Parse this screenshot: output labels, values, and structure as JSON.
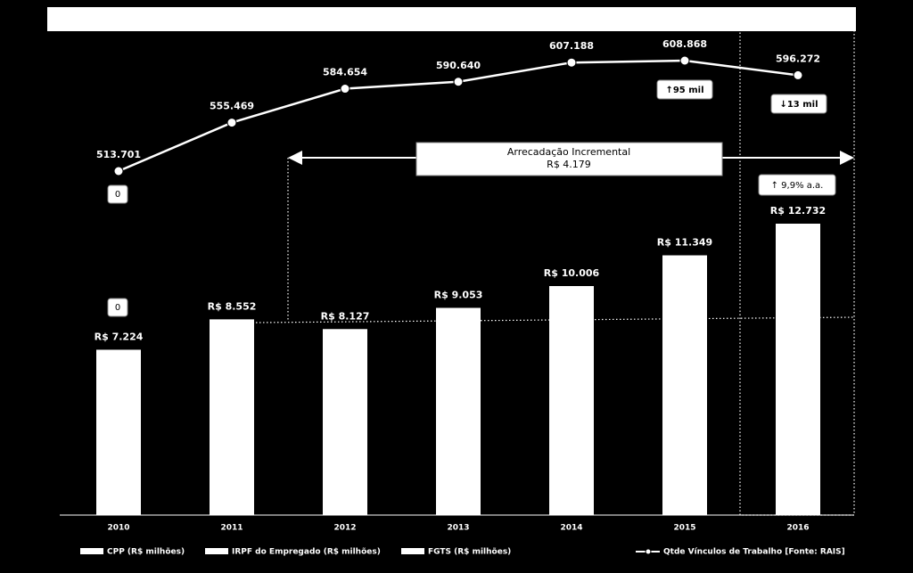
{
  "chart_data": {
    "type": "bar",
    "categories": [
      "2010",
      "2011",
      "2012",
      "2013",
      "2014",
      "2015",
      "2016"
    ],
    "values": [
      7224,
      8552,
      8127,
      9053,
      10006,
      11349,
      12732
    ],
    "value_labels": [
      "R$ 7.224",
      "R$ 8.552",
      "R$ 8.127",
      "R$ 9.053",
      "R$ 10.006",
      "R$ 11.349",
      "R$ 12.732"
    ],
    "color": "#ffffff",
    "legend": [
      "CPP (R$ milhões)",
      "IRPF do Empregado (R$ milhões)",
      "FGTS (R$ milhões)"
    ],
    "line": {
      "name": "Qtde Vínculos de Trabalho [Fonte: RAIS]",
      "color": "#ffffff",
      "values": [
        513701,
        555469,
        584654,
        590640,
        607188,
        608868,
        596272
      ],
      "value_labels": [
        "513.701",
        "555.469",
        "584.654",
        "590.640",
        "607.188",
        "608.868",
        "596.272"
      ]
    },
    "annotations": {
      "zero_top": "0",
      "zero_bottom": "0",
      "change_2015": "↑95 mil",
      "change_2016": "↓13 mil",
      "growth": "↑ 9,9% a.a.",
      "incremental_title": "Arrecadação Incremental",
      "incremental_value": "R$ 4.179"
    }
  }
}
